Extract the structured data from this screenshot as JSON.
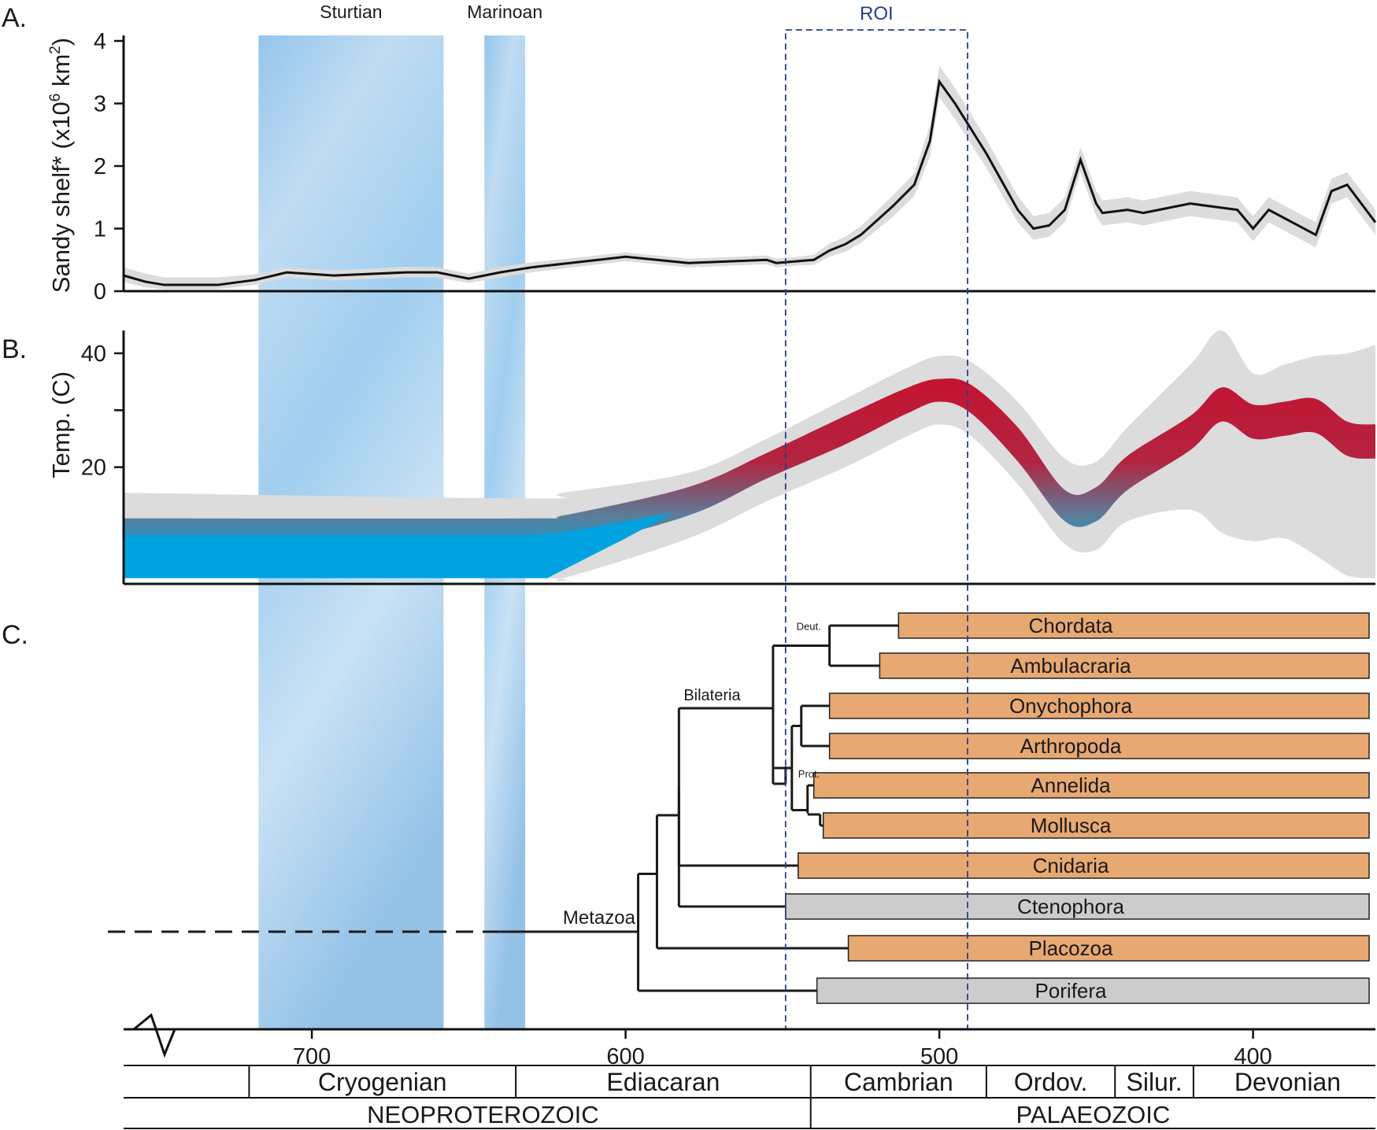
{
  "panel_labels": [
    "A.",
    "B.",
    "C."
  ],
  "glaciations": [
    {
      "name": "Sturtian",
      "start_ma": 717,
      "end_ma": 658
    },
    {
      "name": "Marinoan",
      "start_ma": 645,
      "end_ma": 632
    }
  ],
  "roi": {
    "label": "ROI",
    "start_ma": 549,
    "end_ma": 491
  },
  "colors": {
    "line": "#111111",
    "band": "#dcdcdc",
    "temp_warm": "#c8102e",
    "temp_cold": "#00a3df",
    "bar_orange": "#e8a872",
    "bar_gray": "#cccccc",
    "roi": "#2a3c8c",
    "glacier": "#7fb6e0"
  },
  "chart_data": [
    {
      "type": "line",
      "panel": "A.",
      "ylabel_main": "Sandy shelf* (x10",
      "ylabel_sup1": "6",
      "ylabel_mid": " km",
      "ylabel_sup2": "2",
      "ylabel_end": ")",
      "yticks": [
        "0",
        "1",
        "2",
        "3",
        "4"
      ],
      "ylim": [
        0,
        4
      ],
      "xlim": [
        760,
        361
      ],
      "x": [
        760,
        753,
        747,
        740,
        730,
        718,
        708,
        693,
        670,
        660,
        650,
        640,
        630,
        600,
        580,
        555,
        552,
        545,
        540,
        535,
        530,
        525,
        515,
        508,
        503,
        500,
        495,
        485,
        475,
        470,
        465,
        460,
        455,
        450,
        448,
        440,
        435,
        430,
        420,
        405,
        400,
        395,
        380,
        375,
        370,
        361
      ],
      "y": [
        0.25,
        0.15,
        0.1,
        0.1,
        0.1,
        0.18,
        0.3,
        0.25,
        0.3,
        0.3,
        0.2,
        0.3,
        0.38,
        0.55,
        0.45,
        0.5,
        0.45,
        0.48,
        0.5,
        0.65,
        0.75,
        0.9,
        1.35,
        1.7,
        2.4,
        3.35,
        3.0,
        2.2,
        1.3,
        1.0,
        1.05,
        1.3,
        2.1,
        1.4,
        1.25,
        1.3,
        1.25,
        1.3,
        1.4,
        1.3,
        1.0,
        1.3,
        0.9,
        1.6,
        1.7,
        1.1
      ],
      "band_upper": [
        0.38,
        0.28,
        0.22,
        0.22,
        0.22,
        0.27,
        0.38,
        0.33,
        0.39,
        0.38,
        0.28,
        0.38,
        0.46,
        0.62,
        0.52,
        0.57,
        0.52,
        0.55,
        0.58,
        0.76,
        0.87,
        1.04,
        1.52,
        1.88,
        2.65,
        3.6,
        3.25,
        2.43,
        1.52,
        1.2,
        1.25,
        1.5,
        2.3,
        1.6,
        1.45,
        1.5,
        1.45,
        1.5,
        1.6,
        1.5,
        1.2,
        1.5,
        1.1,
        1.8,
        1.9,
        1.3
      ],
      "band_lower": [
        0.15,
        0.06,
        0.03,
        0.03,
        0.03,
        0.1,
        0.22,
        0.17,
        0.22,
        0.22,
        0.13,
        0.22,
        0.3,
        0.48,
        0.38,
        0.43,
        0.38,
        0.41,
        0.42,
        0.55,
        0.63,
        0.77,
        1.18,
        1.52,
        2.15,
        3.1,
        2.75,
        1.97,
        1.1,
        0.82,
        0.87,
        1.1,
        1.9,
        1.2,
        1.05,
        1.1,
        1.05,
        1.1,
        1.2,
        1.1,
        0.8,
        1.1,
        0.7,
        1.4,
        1.5,
        0.9
      ]
    },
    {
      "type": "area",
      "panel": "B.",
      "ylabel": "Temp. (C)",
      "yticks": [
        "20",
        "40"
      ],
      "ytick_values": [
        20,
        30,
        40
      ],
      "ylim": [
        -0.5,
        44
      ],
      "xlim": [
        760,
        361
      ],
      "x": [
        760,
        630,
        620,
        580,
        555,
        530,
        510,
        500,
        490,
        475,
        460,
        450,
        440,
        420,
        410,
        400,
        390,
        380,
        370,
        361
      ],
      "mean": [
        8,
        8,
        8.5,
        13.5,
        19.5,
        26,
        31,
        32.5,
        31.5,
        24,
        13,
        13.5,
        19,
        26,
        31,
        28,
        28.5,
        29,
        25,
        24.5
      ],
      "upper_95": [
        15.5,
        14.5,
        15.5,
        19,
        25,
        32,
        37.5,
        39.5,
        38.5,
        31.5,
        21.5,
        21,
        27,
        38,
        44,
        36.5,
        38,
        39.5,
        40,
        41.5
      ],
      "lower_95": [
        0.5,
        0.5,
        0.5,
        7.5,
        14,
        20,
        25.5,
        27.5,
        25.5,
        17,
        6.5,
        5.5,
        10.5,
        12.5,
        8.5,
        7,
        7.5,
        4.5,
        1,
        0.5
      ]
    },
    {
      "type": "bar",
      "panel": "C.",
      "root_label": "Metazoa",
      "clade_labels": {
        "bilateria": "Bilateria",
        "deut": "Deut.",
        "prot": "Prot."
      },
      "taxa": [
        {
          "name": "Chordata",
          "first_ma": 513,
          "fill": "orange"
        },
        {
          "name": "Ambulacraria",
          "first_ma": 519,
          "fill": "orange"
        },
        {
          "name": "Onychophora",
          "first_ma": 535,
          "fill": "orange"
        },
        {
          "name": "Arthropoda",
          "first_ma": 535,
          "fill": "orange"
        },
        {
          "name": "Annelida",
          "first_ma": 540,
          "fill": "orange"
        },
        {
          "name": "Mollusca",
          "first_ma": 537,
          "fill": "orange"
        },
        {
          "name": "Cnidaria",
          "first_ma": 545,
          "fill": "orange"
        },
        {
          "name": "Ctenophora",
          "first_ma": 549,
          "fill": "gray"
        },
        {
          "name": "Placozoa",
          "first_ma": 529,
          "fill": "orange"
        },
        {
          "name": "Porifera",
          "first_ma": 539,
          "fill": "gray"
        }
      ],
      "nodes_ma": {
        "deut": 535,
        "prot_a": 544,
        "prot_b": 547,
        "prot_c": 538,
        "prot_d": 542,
        "prot": 549,
        "protdeut": 553,
        "bilateria": 583,
        "bil_cni": 584,
        "cten_split": 590,
        "metazoa": 596
      }
    }
  ],
  "x_axis": {
    "ticks": [
      "700",
      "600",
      "500",
      "400"
    ],
    "tick_values": [
      700,
      600,
      500,
      400
    ],
    "xlim": [
      760,
      361
    ]
  },
  "periods": [
    {
      "name": "Cryogenian",
      "start_ma": 720,
      "end_ma": 635
    },
    {
      "name": "Ediacaran",
      "start_ma": 635,
      "end_ma": 541
    },
    {
      "name": "Cambrian",
      "start_ma": 541,
      "end_ma": 485
    },
    {
      "name": "Ordov.",
      "start_ma": 485,
      "end_ma": 444
    },
    {
      "name": "Silur.",
      "start_ma": 444,
      "end_ma": 419
    },
    {
      "name": "Devonian",
      "start_ma": 419,
      "end_ma": 359
    }
  ],
  "eras": [
    {
      "name": "NEOPROTEROZOIC",
      "start_ma": 760,
      "end_ma": 541
    },
    {
      "name": "PALAEOZOIC",
      "start_ma": 541,
      "end_ma": 361
    }
  ]
}
